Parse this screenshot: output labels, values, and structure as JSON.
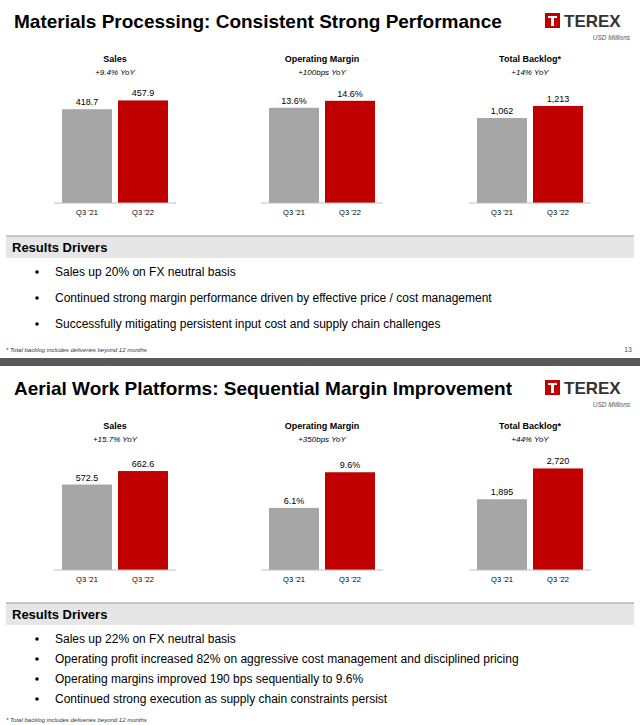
{
  "chart_data": [
    {
      "type": "bar",
      "title": "Sales",
      "subtitle": "+9.4% YoY",
      "categories": [
        "Q3 '21",
        "Q3 '22"
      ],
      "values": [
        418.7,
        457.9
      ],
      "colors": [
        "#a6a6a6",
        "#c00000"
      ],
      "ylim": [
        0,
        500
      ],
      "data_labels": true,
      "tick_labels": "x"
    },
    {
      "type": "bar",
      "title": "Operating Margin",
      "subtitle": "+100bps YoY",
      "categories": [
        "Q3 '21",
        "Q3 '22"
      ],
      "values": [
        13.6,
        14.6
      ],
      "value_labels": [
        "13.6%",
        "14.6%"
      ],
      "colors": [
        "#a6a6a6",
        "#c00000"
      ],
      "ylim": [
        0,
        16
      ],
      "data_labels": true,
      "tick_labels": "x"
    },
    {
      "type": "bar",
      "title": "Total Backlog*",
      "subtitle": "+14% YoY",
      "categories": [
        "Q3 '21",
        "Q3 '22"
      ],
      "values": [
        1062,
        1213
      ],
      "value_labels": [
        "1,062",
        "1,213"
      ],
      "colors": [
        "#a6a6a6",
        "#c00000"
      ],
      "ylim": [
        0,
        1400
      ],
      "data_labels": true,
      "tick_labels": "x"
    },
    {
      "type": "bar",
      "title": "Sales",
      "subtitle": "+15.7% YoY",
      "categories": [
        "Q3 '21",
        "Q3 '22"
      ],
      "values": [
        572.5,
        662.6
      ],
      "colors": [
        "#a6a6a6",
        "#c00000"
      ],
      "ylim": [
        0,
        750
      ],
      "data_labels": true,
      "tick_labels": "x"
    },
    {
      "type": "bar",
      "title": "Operating Margin",
      "subtitle": "+350bps YoY",
      "categories": [
        "Q3 '21",
        "Q3 '22"
      ],
      "values": [
        6.1,
        9.6
      ],
      "value_labels": [
        "6.1%",
        "9.6%"
      ],
      "colors": [
        "#a6a6a6",
        "#c00000"
      ],
      "ylim": [
        0,
        11
      ],
      "data_labels": true,
      "tick_labels": "x"
    },
    {
      "type": "bar",
      "title": "Total Backlog*",
      "subtitle": "+44% YoY",
      "categories": [
        "Q3 '21",
        "Q3 '22"
      ],
      "values": [
        1895,
        2720
      ],
      "value_labels": [
        "1,895",
        "2,720"
      ],
      "colors": [
        "#a6a6a6",
        "#c00000"
      ],
      "ylim": [
        0,
        3000
      ],
      "data_labels": true,
      "tick_labels": "x"
    }
  ],
  "panels": [
    {
      "title": "Materials Processing: Consistent Strong Performance",
      "logo": "TEREX",
      "unit": "USD Millions",
      "drivers_title": "Results Drivers",
      "drivers": [
        "Sales up 20% on FX neutral basis",
        "Continued strong margin performance driven by effective price / cost management",
        "Successfully mitigating persistent input cost and supply chain challenges"
      ],
      "footnote": "* Total backlog includes deliveries beyond 12 months",
      "page": "13"
    },
    {
      "title": "Aerial Work Platforms: Sequential Margin Improvement",
      "logo": "TEREX",
      "unit": "USD Millions",
      "drivers_title": "Results Drivers",
      "drivers": [
        "Sales up 22% on FX neutral basis",
        "Operating profit increased 82% on aggressive cost management and disciplined pricing",
        "Operating margins improved 190 bps sequentially to 9.6%",
        "Continued strong execution as supply chain constraints persist"
      ],
      "footnote": "* Total backlog includes deliveries beyond 12 months"
    }
  ]
}
